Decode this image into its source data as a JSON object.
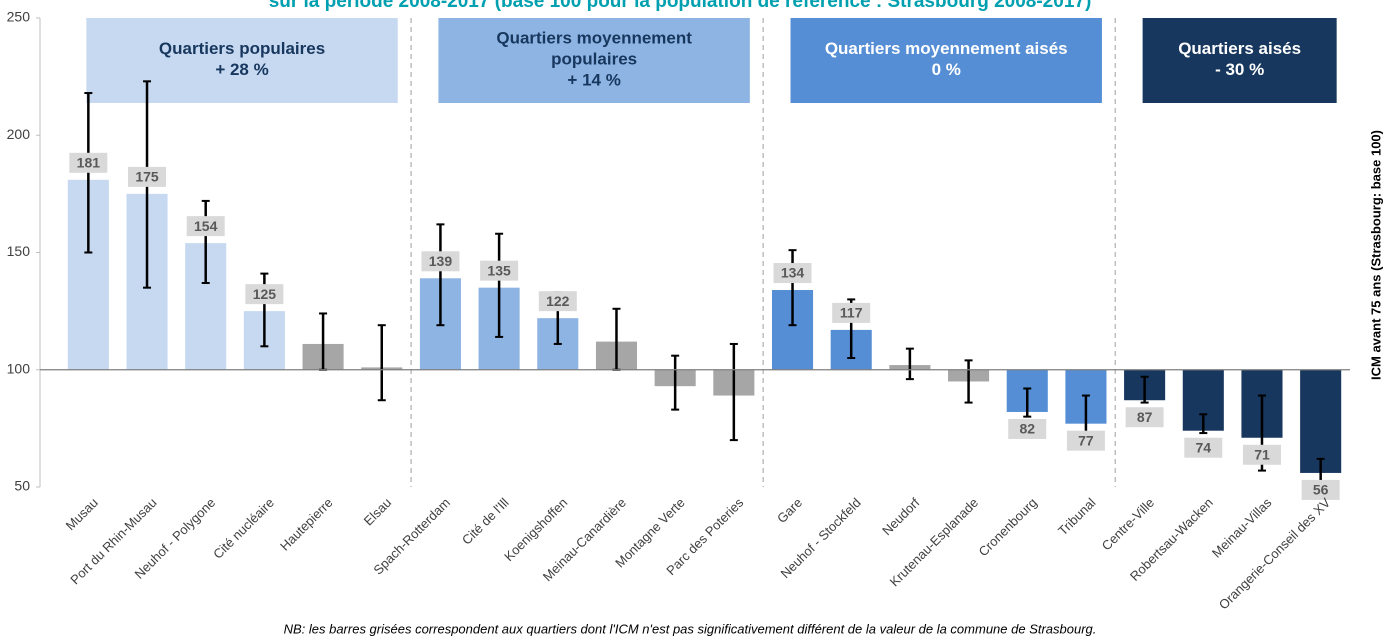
{
  "chart_data": {
    "type": "bar",
    "title": "sur la période 2008-2017 (base 100 pour la population de référence : Strasbourg 2008-2017)",
    "y_label": "ICM  avant 75 ans  (Strasbourg: base 100)",
    "note": "NB: les barres grisées correspondent aux quartiers dont l'ICM n'est pas significativement différent de la valeur de la commune de Strasbourg.",
    "categories": [
      "Musau",
      "Port du Rhin-Musau",
      "Neuhof - Polygone",
      "Cité nucléaire",
      "Hautepierre",
      "Elsau",
      "Spach-Rotterdam",
      "Cité de l'Ill",
      "Koenigshoffen",
      "Meinau-Canardière",
      "Montagne Verte",
      "Parc des Poteries",
      "Gare",
      "Neuhof - Stockfeld",
      "Neudorf",
      "Krutenau-Esplanade",
      "Cronenbourg",
      "Tribunal",
      "Centre-Ville",
      "Robertsau-Wacken",
      "Meinau-Villas",
      "Orangerie-Conseil des XV"
    ],
    "values": [
      181,
      175,
      154,
      125,
      111,
      101,
      139,
      135,
      122,
      112,
      93,
      89,
      134,
      117,
      102,
      95,
      82,
      77,
      87,
      74,
      71,
      56
    ],
    "ci_low": [
      150,
      135,
      137,
      110,
      100,
      87,
      119,
      114,
      111,
      100,
      83,
      70,
      119,
      105,
      96,
      86,
      80,
      67,
      86,
      73,
      57,
      51
    ],
    "ci_high": [
      218,
      223,
      172,
      141,
      124,
      119,
      162,
      158,
      133,
      126,
      106,
      111,
      151,
      130,
      109,
      104,
      92,
      89,
      97,
      81,
      89,
      62
    ],
    "significant": [
      true,
      true,
      true,
      true,
      false,
      false,
      true,
      true,
      true,
      false,
      false,
      false,
      true,
      true,
      false,
      false,
      true,
      true,
      true,
      true,
      true,
      true
    ],
    "nonsignificant_color": "#a6a6a6",
    "groups": [
      {
        "label": [
          "Quartiers populaires"
        ],
        "change": "+ 28 %",
        "start": 0,
        "end": 5,
        "color": "#c6d9f1",
        "text_color": "#17375e"
      },
      {
        "label": [
          "Quartiers moyennement",
          "populaires"
        ],
        "change": "+ 14 %",
        "start": 6,
        "end": 11,
        "color": "#8db4e2",
        "text_color": "#17375e"
      },
      {
        "label": [
          "Quartiers moyennement aisés"
        ],
        "change": "0 %",
        "start": 12,
        "end": 17,
        "color": "#558ed5",
        "text_color": "#ffffff"
      },
      {
        "label": [
          "Quartiers aisés"
        ],
        "change": "- 30 %",
        "start": 18,
        "end": 21,
        "color": "#17375e",
        "text_color": "#ffffff"
      }
    ],
    "baseline": 100,
    "ylim": [
      50,
      250
    ],
    "yticks": [
      50,
      100,
      150,
      200,
      250
    ]
  }
}
